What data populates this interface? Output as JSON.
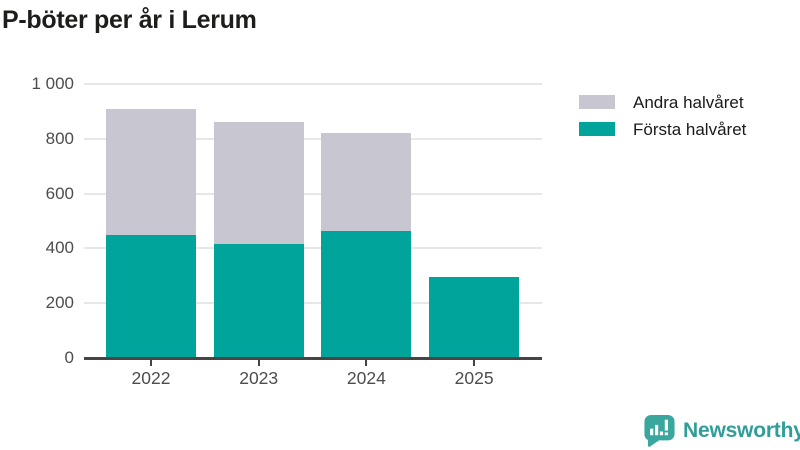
{
  "title": "P-böter per år i Lerum",
  "chart_data": {
    "type": "bar",
    "stacked": true,
    "title": "P-böter per år i Lerum",
    "xlabel": "",
    "ylabel": "",
    "categories": [
      "2022",
      "2023",
      "2024",
      "2025"
    ],
    "series": [
      {
        "name": "Första halvåret",
        "color": "#00a49a",
        "values": [
          450,
          415,
          465,
          295
        ]
      },
      {
        "name": "Andra halvåret",
        "color": "#c8c7d1",
        "values": [
          460,
          445,
          355,
          0
        ]
      }
    ],
    "totals": [
      910,
      860,
      820,
      295
    ],
    "ylim": [
      0,
      1000
    ],
    "yticks": [
      0,
      200,
      400,
      600,
      800,
      1000
    ],
    "ytick_labels": [
      "0",
      "200",
      "400",
      "600",
      "800",
      "1 000"
    ],
    "grid": true,
    "legend_position": "top-right"
  },
  "legend": {
    "items": [
      {
        "label": "Andra halvåret",
        "color": "#c8c7d1"
      },
      {
        "label": "Första halvåret",
        "color": "#00a49a"
      }
    ]
  },
  "branding": {
    "name": "Newsworthy",
    "color": "#309e98",
    "icon": "newsworthy-chart-bubble-icon"
  },
  "colors": {
    "background": "#ffffff",
    "grid": "#e7e7e7",
    "axis": "#454545",
    "title_text": "#1d1d1b",
    "axis_text": "#4d4d4d",
    "series_first_half": "#00a49a",
    "series_second_half": "#c8c7d1",
    "brand": "#309e98"
  }
}
